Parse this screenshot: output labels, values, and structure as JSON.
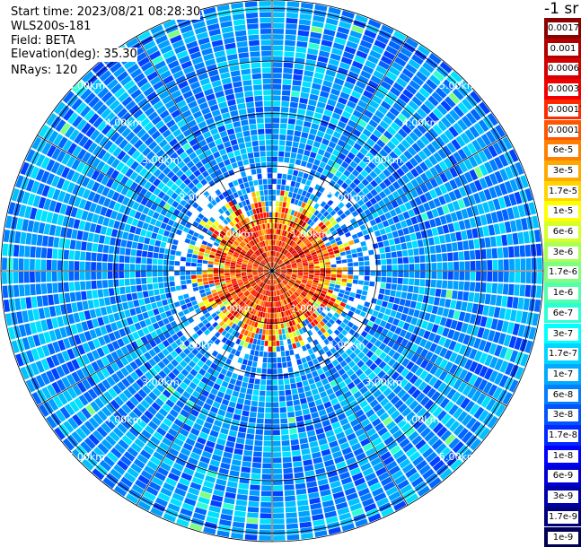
{
  "header": {
    "start_time": "Start time: 2023/08/21 08:28:30",
    "instrument": "WLS200s-181",
    "field": "Field: BETA",
    "elevation": "Elevation(deg): 35.30",
    "nrays": "NRays: 120"
  },
  "plot": {
    "n_rays": 120,
    "max_range_km": 5.5,
    "range_labels": [
      "1.00km",
      "2.00km",
      "3.00km",
      "4.00km",
      "5.00km"
    ]
  },
  "colorbar": {
    "title": "-1 sr",
    "labels": [
      "0.0017",
      "0.001",
      "0.0006",
      "0.0003",
      "0.00017",
      "0.0001",
      "6e-5",
      "3e-5",
      "1.7e-5",
      "1e-5",
      "6e-6",
      "3e-6",
      "1.7e-6",
      "1e-6",
      "6e-7",
      "3e-7",
      "1.7e-7",
      "1e-7",
      "6e-8",
      "3e-8",
      "1.7e-8",
      "1e-8",
      "6e-9",
      "3e-9",
      "1.7e-9",
      "1e-9"
    ],
    "colors": [
      "#8b0000",
      "#b00000",
      "#d40000",
      "#f20000",
      "#ff2a00",
      "#ff5500",
      "#ff7f00",
      "#ffa900",
      "#ffd400",
      "#ffff00",
      "#d4ff2b",
      "#aaff55",
      "#7fff80",
      "#55ffaa",
      "#2bffd4",
      "#00ffff",
      "#00d4ff",
      "#00aaff",
      "#007fff",
      "#0055ff",
      "#002aff",
      "#0000ff",
      "#0000d4",
      "#0000aa",
      "#00007f",
      "#000055"
    ]
  }
}
